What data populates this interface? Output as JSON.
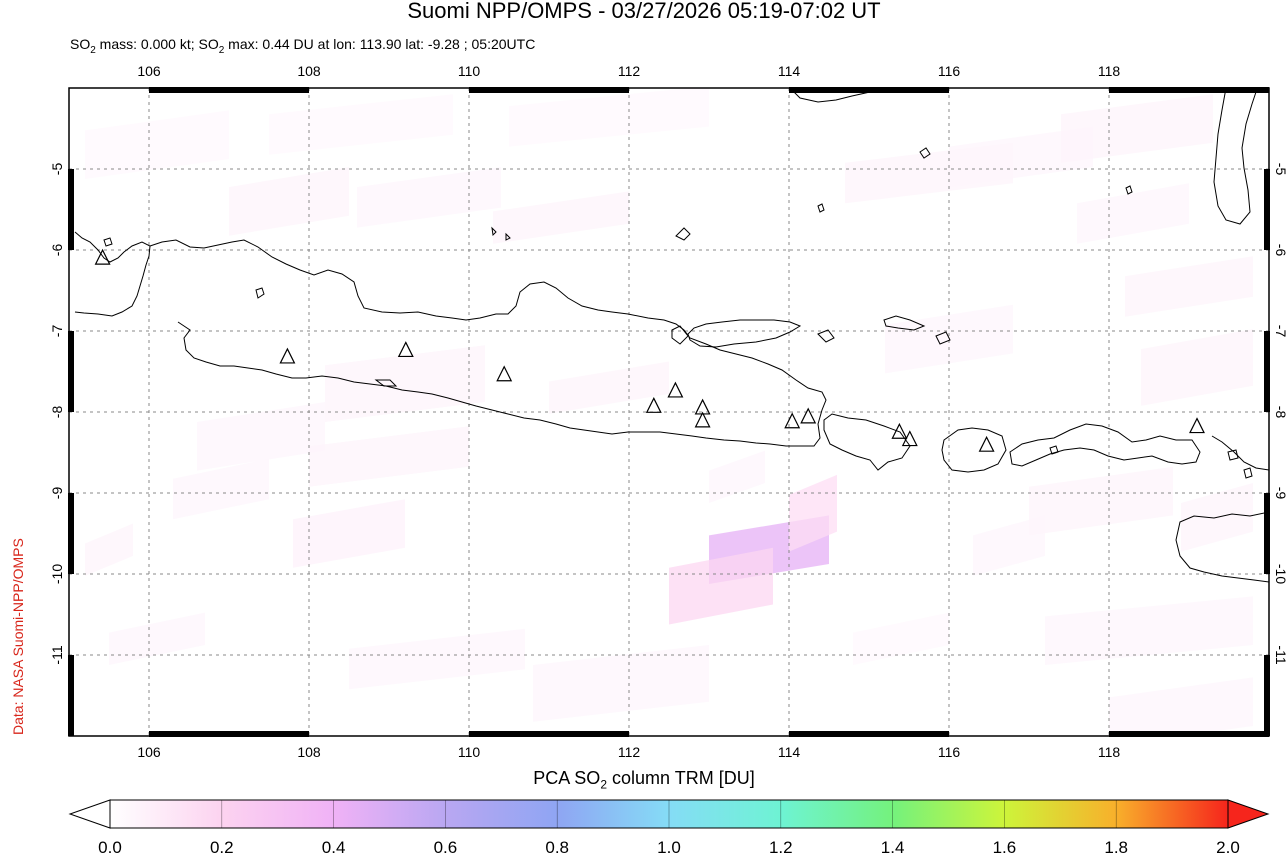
{
  "header": {
    "title": "Suomi NPP/OMPS - 03/27/2026 05:19-07:02 UT",
    "sub_a": "SO",
    "sub_b": "2",
    "sub_c": " mass: 0.000 kt; SO",
    "sub_d": "2",
    "sub_e": " max: 0.44 DU at lon: 113.90 lat: -9.28 ; 05:20UTC"
  },
  "credit": "Data: NASA Suomi-NPP/OMPS",
  "map": {
    "lon_range": [
      105,
      120
    ],
    "lat_range": [
      -12,
      -4
    ],
    "lon_ticks": [
      "106",
      "108",
      "110",
      "112",
      "114",
      "116",
      "118"
    ],
    "lat_ticks": [
      "-5",
      "-6",
      "-7",
      "-8",
      "-9",
      "-10",
      "-11"
    ],
    "grid": "dotted",
    "volcano_marker": "triangle-icon",
    "volcanoes": [
      [
        105.42,
        -6.1
      ],
      [
        107.73,
        -7.32
      ],
      [
        109.21,
        -7.24
      ],
      [
        110.44,
        -7.54
      ],
      [
        112.31,
        -7.93
      ],
      [
        112.58,
        -7.74
      ],
      [
        112.92,
        -7.95
      ],
      [
        112.92,
        -8.11
      ],
      [
        114.04,
        -8.12
      ],
      [
        114.24,
        -8.06
      ],
      [
        115.38,
        -8.25
      ],
      [
        115.51,
        -8.34
      ],
      [
        116.47,
        -8.41
      ],
      [
        119.1,
        -8.18
      ]
    ],
    "so2_cells": [
      {
        "lon0": 113.0,
        "lat0": -9.4,
        "lon1": 114.5,
        "lat1": -10.0,
        "value": 0.44
      },
      {
        "lon0": 112.5,
        "lat0": -9.8,
        "lon1": 113.8,
        "lat1": -10.5,
        "value": 0.18
      },
      {
        "lon0": 114.0,
        "lat0": -8.9,
        "lon1": 114.6,
        "lat1": -9.6,
        "value": 0.15
      },
      {
        "lon0": 107.0,
        "lat0": -5.1,
        "lon1": 108.5,
        "lat1": -5.7,
        "value": 0.05
      },
      {
        "lon0": 108.6,
        "lat0": -5.1,
        "lon1": 110.4,
        "lat1": -5.6,
        "value": 0.04
      },
      {
        "lon0": 110.3,
        "lat0": -5.4,
        "lon1": 112.0,
        "lat1": -5.8,
        "value": 0.05
      },
      {
        "lon0": 107.5,
        "lat0": -4.2,
        "lon1": 109.8,
        "lat1": -4.7,
        "value": 0.03
      },
      {
        "lon0": 110.5,
        "lat0": -4.1,
        "lon1": 113.0,
        "lat1": -4.6,
        "value": 0.03
      },
      {
        "lon0": 105.2,
        "lat0": -4.4,
        "lon1": 107.0,
        "lat1": -5.0,
        "value": 0.03
      },
      {
        "lon0": 108.2,
        "lat0": -7.3,
        "lon1": 110.2,
        "lat1": -8.0,
        "value": 0.05
      },
      {
        "lon0": 111.0,
        "lat0": -7.5,
        "lon1": 112.5,
        "lat1": -7.9,
        "value": 0.05
      },
      {
        "lon0": 106.6,
        "lat0": -8.0,
        "lon1": 108.2,
        "lat1": -8.6,
        "value": 0.04
      },
      {
        "lon0": 108.0,
        "lat0": -8.3,
        "lon1": 110.0,
        "lat1": -8.8,
        "value": 0.05
      },
      {
        "lon0": 106.3,
        "lat0": -8.7,
        "lon1": 107.5,
        "lat1": -9.2,
        "value": 0.04
      },
      {
        "lon0": 107.8,
        "lat0": -9.2,
        "lon1": 109.2,
        "lat1": -9.8,
        "value": 0.06
      },
      {
        "lon0": 105.2,
        "lat0": -9.5,
        "lon1": 105.8,
        "lat1": -9.9,
        "value": 0.05
      },
      {
        "lon0": 105.5,
        "lat0": -10.6,
        "lon1": 106.7,
        "lat1": -11.0,
        "value": 0.04
      },
      {
        "lon0": 108.5,
        "lat0": -10.8,
        "lon1": 110.7,
        "lat1": -11.3,
        "value": 0.04
      },
      {
        "lon0": 110.8,
        "lat0": -11.0,
        "lon1": 113.0,
        "lat1": -11.7,
        "value": 0.04
      },
      {
        "lon0": 113.0,
        "lat0": -8.6,
        "lon1": 113.7,
        "lat1": -9.0,
        "value": 0.04
      },
      {
        "lon0": 114.7,
        "lat0": -4.8,
        "lon1": 116.8,
        "lat1": -5.3,
        "value": 0.05
      },
      {
        "lon0": 116.0,
        "lat0": -4.6,
        "lon1": 117.8,
        "lat1": -5.1,
        "value": 0.04
      },
      {
        "lon0": 117.4,
        "lat0": -4.2,
        "lon1": 119.3,
        "lat1": -4.8,
        "value": 0.05
      },
      {
        "lon0": 117.6,
        "lat0": -5.3,
        "lon1": 119.0,
        "lat1": -5.8,
        "value": 0.04
      },
      {
        "lon0": 118.2,
        "lat0": -6.2,
        "lon1": 119.8,
        "lat1": -6.7,
        "value": 0.05
      },
      {
        "lon0": 115.2,
        "lat0": -6.8,
        "lon1": 116.8,
        "lat1": -7.4,
        "value": 0.04
      },
      {
        "lon0": 118.4,
        "lat0": -7.1,
        "lon1": 119.8,
        "lat1": -7.8,
        "value": 0.05
      },
      {
        "lon0": 117.0,
        "lat0": -8.8,
        "lon1": 118.8,
        "lat1": -9.4,
        "value": 0.05
      },
      {
        "lon0": 118.9,
        "lat0": -9.0,
        "lon1": 119.8,
        "lat1": -9.6,
        "value": 0.05
      },
      {
        "lon0": 116.3,
        "lat0": -9.4,
        "lon1": 117.2,
        "lat1": -9.9,
        "value": 0.04
      },
      {
        "lon0": 117.2,
        "lat0": -10.4,
        "lon1": 119.8,
        "lat1": -11.0,
        "value": 0.04
      },
      {
        "lon0": 118.0,
        "lat0": -11.4,
        "lon1": 119.8,
        "lat1": -12.0,
        "value": 0.04
      },
      {
        "lon0": 114.8,
        "lat0": -10.6,
        "lon1": 116.0,
        "lat1": -11.0,
        "value": 0.03
      }
    ]
  },
  "colorbar": {
    "title_a": "PCA SO",
    "title_b": "2",
    "title_c": " column TRM [DU]",
    "ticks": [
      "0.0",
      "0.2",
      "0.4",
      "0.6",
      "0.8",
      "1.0",
      "1.2",
      "1.4",
      "1.6",
      "1.8",
      "2.0"
    ],
    "stops": [
      {
        "v": 0.0,
        "c": "#ffffff"
      },
      {
        "v": 0.2,
        "c": "#fcd3f0"
      },
      {
        "v": 0.4,
        "c": "#f0b2f6"
      },
      {
        "v": 0.6,
        "c": "#b9a7f2"
      },
      {
        "v": 0.8,
        "c": "#8fa5f3"
      },
      {
        "v": 1.0,
        "c": "#85dcf6"
      },
      {
        "v": 1.2,
        "c": "#6ef3d3"
      },
      {
        "v": 1.4,
        "c": "#74f27d"
      },
      {
        "v": 1.6,
        "c": "#cdf43a"
      },
      {
        "v": 1.8,
        "c": "#f8b02b"
      },
      {
        "v": 2.0,
        "c": "#f6251c"
      }
    ]
  }
}
